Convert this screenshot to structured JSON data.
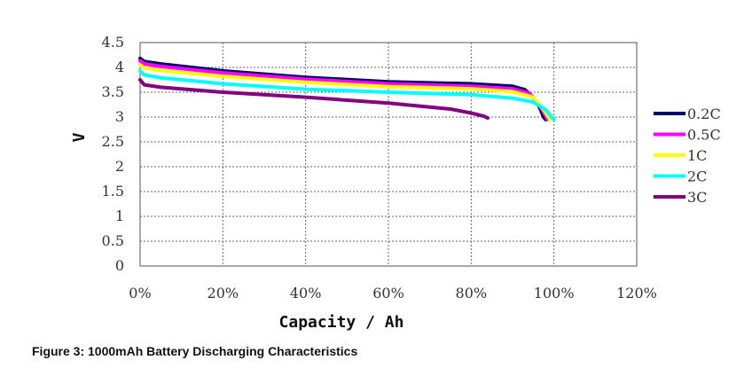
{
  "caption": "Figure 3: 1000mAh Battery Discharging Characteristics",
  "chart_data": {
    "type": "line",
    "xlabel": "Capacity / Ah",
    "ylabel": "V",
    "xlim": [
      0,
      120
    ],
    "ylim": [
      0,
      4.5
    ],
    "x_ticks": [
      "0%",
      "20%",
      "40%",
      "60%",
      "80%",
      "100%",
      "120%"
    ],
    "y_ticks": [
      "0",
      "0.5",
      "1",
      "1.5",
      "2",
      "2.5",
      "3",
      "3.5",
      "4",
      "4.5"
    ],
    "grid": true,
    "legend_position": "right",
    "series": [
      {
        "name": "0.2C",
        "color": "#000066",
        "x": [
          0,
          1,
          5,
          20,
          40,
          60,
          80,
          90,
          93,
          95,
          96.5,
          97.5,
          98
        ],
        "y": [
          4.18,
          4.12,
          4.07,
          3.93,
          3.8,
          3.71,
          3.67,
          3.62,
          3.55,
          3.4,
          3.2,
          3.0,
          2.95
        ]
      },
      {
        "name": "0.5C",
        "color": "#ff00ff",
        "x": [
          0,
          1,
          5,
          20,
          40,
          60,
          80,
          90,
          94,
          96,
          97.5,
          98.5
        ],
        "y": [
          4.13,
          4.07,
          4.02,
          3.89,
          3.76,
          3.67,
          3.62,
          3.57,
          3.48,
          3.3,
          3.1,
          2.95
        ]
      },
      {
        "name": "1C",
        "color": "#ffff00",
        "x": [
          0,
          1,
          5,
          20,
          40,
          60,
          80,
          90,
          95,
          97.5,
          99
        ],
        "y": [
          4.05,
          3.99,
          3.94,
          3.82,
          3.7,
          3.61,
          3.57,
          3.51,
          3.4,
          3.15,
          2.95
        ]
      },
      {
        "name": "2C",
        "color": "#00ffff",
        "x": [
          0,
          1,
          5,
          20,
          40,
          60,
          80,
          90,
          95,
          98,
          100
        ],
        "y": [
          3.93,
          3.85,
          3.79,
          3.67,
          3.56,
          3.5,
          3.45,
          3.38,
          3.3,
          3.15,
          2.95
        ]
      },
      {
        "name": "3C",
        "color": "#800080",
        "x": [
          0,
          1,
          5,
          20,
          40,
          60,
          75,
          80,
          83,
          84
        ],
        "y": [
          3.75,
          3.65,
          3.6,
          3.5,
          3.4,
          3.28,
          3.16,
          3.08,
          3.02,
          2.98
        ]
      }
    ]
  }
}
